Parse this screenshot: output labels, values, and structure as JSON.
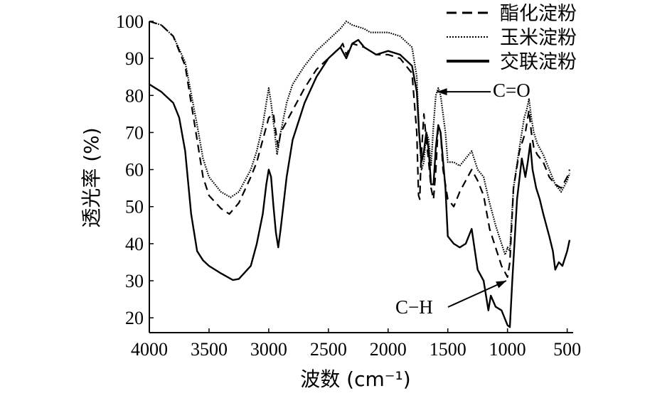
{
  "chart_data": {
    "type": "line",
    "title": "",
    "xlabel": "波数 (cm⁻¹)",
    "ylabel": "透光率 (%)",
    "xlim": [
      4000,
      450
    ],
    "xreversed": true,
    "ylim": [
      16,
      100
    ],
    "xticks": [
      4000,
      3500,
      3000,
      2500,
      2000,
      1500,
      1000,
      500
    ],
    "xtick_labels": [
      "4000",
      "3500",
      "3000",
      "2500",
      "2000",
      "1500",
      "1000",
      "500"
    ],
    "yticks": [
      20,
      30,
      40,
      50,
      60,
      70,
      80,
      90,
      100
    ],
    "ytick_labels": [
      "20",
      "30",
      "40",
      "50",
      "60",
      "70",
      "80",
      "90",
      "100"
    ],
    "grid": false,
    "legend_position": "top-right",
    "series": [
      {
        "name": "酯化淀粉",
        "style": "dashed",
        "points": [
          [
            4000,
            100
          ],
          [
            3900,
            99
          ],
          [
            3800,
            96
          ],
          [
            3700,
            88
          ],
          [
            3600,
            68
          ],
          [
            3550,
            58
          ],
          [
            3500,
            53
          ],
          [
            3400,
            49.5
          ],
          [
            3330,
            48
          ],
          [
            3250,
            51
          ],
          [
            3150,
            58
          ],
          [
            3100,
            62
          ],
          [
            3050,
            68
          ],
          [
            3000,
            74
          ],
          [
            2960,
            75
          ],
          [
            2940,
            70
          ],
          [
            2920,
            66
          ],
          [
            2900,
            70
          ],
          [
            2800,
            76
          ],
          [
            2700,
            82
          ],
          [
            2600,
            87
          ],
          [
            2500,
            90
          ],
          [
            2400,
            93
          ],
          [
            2380,
            94
          ],
          [
            2350,
            91
          ],
          [
            2300,
            94
          ],
          [
            2200,
            93
          ],
          [
            2100,
            91
          ],
          [
            2000,
            91
          ],
          [
            1900,
            90
          ],
          [
            1800,
            86
          ],
          [
            1760,
            70
          ],
          [
            1745,
            53
          ],
          [
            1735,
            52
          ],
          [
            1725,
            62
          ],
          [
            1700,
            75
          ],
          [
            1680,
            68
          ],
          [
            1660,
            62
          ],
          [
            1640,
            55
          ],
          [
            1620,
            52
          ],
          [
            1600,
            60
          ],
          [
            1580,
            72
          ],
          [
            1560,
            70
          ],
          [
            1540,
            60
          ],
          [
            1500,
            52
          ],
          [
            1450,
            50
          ],
          [
            1400,
            54
          ],
          [
            1350,
            57
          ],
          [
            1300,
            60
          ],
          [
            1250,
            57
          ],
          [
            1200,
            53
          ],
          [
            1150,
            44
          ],
          [
            1100,
            39
          ],
          [
            1050,
            34
          ],
          [
            1000,
            31
          ],
          [
            980,
            35
          ],
          [
            950,
            55
          ],
          [
            900,
            65
          ],
          [
            850,
            70
          ],
          [
            820,
            76
          ],
          [
            800,
            70
          ],
          [
            780,
            66
          ],
          [
            750,
            64
          ],
          [
            700,
            62
          ],
          [
            650,
            58
          ],
          [
            600,
            56
          ],
          [
            550,
            55
          ],
          [
            500,
            58
          ],
          [
            480,
            60
          ]
        ]
      },
      {
        "name": "玉米淀粉",
        "style": "dotted",
        "points": [
          [
            4000,
            100
          ],
          [
            3900,
            99
          ],
          [
            3800,
            96
          ],
          [
            3700,
            89
          ],
          [
            3600,
            72
          ],
          [
            3550,
            63
          ],
          [
            3500,
            58
          ],
          [
            3400,
            54
          ],
          [
            3320,
            52.5
          ],
          [
            3250,
            54
          ],
          [
            3150,
            60
          ],
          [
            3100,
            65
          ],
          [
            3050,
            72
          ],
          [
            3010,
            80
          ],
          [
            3000,
            82
          ],
          [
            2980,
            78
          ],
          [
            2950,
            70
          ],
          [
            2930,
            64
          ],
          [
            2900,
            70
          ],
          [
            2850,
            78
          ],
          [
            2800,
            83
          ],
          [
            2700,
            88
          ],
          [
            2600,
            92
          ],
          [
            2500,
            95
          ],
          [
            2400,
            98
          ],
          [
            2350,
            100
          ],
          [
            2300,
            99
          ],
          [
            2200,
            98
          ],
          [
            2150,
            97
          ],
          [
            2100,
            97
          ],
          [
            2000,
            97
          ],
          [
            1900,
            96
          ],
          [
            1800,
            93
          ],
          [
            1760,
            85
          ],
          [
            1740,
            70
          ],
          [
            1720,
            60
          ],
          [
            1700,
            62
          ],
          [
            1680,
            70
          ],
          [
            1660,
            68
          ],
          [
            1640,
            61
          ],
          [
            1620,
            72
          ],
          [
            1600,
            80
          ],
          [
            1580,
            82
          ],
          [
            1560,
            80
          ],
          [
            1520,
            70
          ],
          [
            1500,
            62
          ],
          [
            1450,
            62
          ],
          [
            1400,
            61
          ],
          [
            1350,
            63
          ],
          [
            1300,
            65
          ],
          [
            1250,
            60
          ],
          [
            1200,
            58
          ],
          [
            1150,
            51
          ],
          [
            1100,
            45
          ],
          [
            1050,
            40
          ],
          [
            1020,
            37
          ],
          [
            1000,
            39
          ],
          [
            980,
            38
          ],
          [
            950,
            55
          ],
          [
            900,
            66
          ],
          [
            860,
            74
          ],
          [
            840,
            76
          ],
          [
            820,
            79
          ],
          [
            800,
            74
          ],
          [
            780,
            70
          ],
          [
            750,
            67
          ],
          [
            700,
            64
          ],
          [
            650,
            60
          ],
          [
            600,
            56
          ],
          [
            550,
            54
          ],
          [
            500,
            57
          ],
          [
            480,
            59
          ]
        ]
      },
      {
        "name": "交联淀粉",
        "style": "solid",
        "points": [
          [
            4000,
            83
          ],
          [
            3900,
            81
          ],
          [
            3800,
            78
          ],
          [
            3750,
            74
          ],
          [
            3700,
            65
          ],
          [
            3650,
            48
          ],
          [
            3600,
            38
          ],
          [
            3550,
            35.5
          ],
          [
            3500,
            34
          ],
          [
            3400,
            32
          ],
          [
            3300,
            30.2
          ],
          [
            3250,
            30.5
          ],
          [
            3150,
            34
          ],
          [
            3100,
            40
          ],
          [
            3050,
            48
          ],
          [
            3020,
            56
          ],
          [
            3000,
            60
          ],
          [
            2980,
            58
          ],
          [
            2960,
            50
          ],
          [
            2940,
            43
          ],
          [
            2920,
            39
          ],
          [
            2900,
            44
          ],
          [
            2850,
            58
          ],
          [
            2800,
            68
          ],
          [
            2700,
            78
          ],
          [
            2600,
            85
          ],
          [
            2500,
            90
          ],
          [
            2400,
            93
          ],
          [
            2350,
            90
          ],
          [
            2300,
            94
          ],
          [
            2250,
            95
          ],
          [
            2200,
            93
          ],
          [
            2100,
            91
          ],
          [
            2000,
            92
          ],
          [
            1900,
            91
          ],
          [
            1800,
            88
          ],
          [
            1760,
            81
          ],
          [
            1740,
            70
          ],
          [
            1720,
            62
          ],
          [
            1700,
            65
          ],
          [
            1680,
            70
          ],
          [
            1660,
            65
          ],
          [
            1640,
            56
          ],
          [
            1620,
            56
          ],
          [
            1600,
            66
          ],
          [
            1580,
            72
          ],
          [
            1560,
            70
          ],
          [
            1520,
            55
          ],
          [
            1500,
            42
          ],
          [
            1450,
            40
          ],
          [
            1400,
            39
          ],
          [
            1350,
            40
          ],
          [
            1300,
            44
          ],
          [
            1250,
            33
          ],
          [
            1200,
            30
          ],
          [
            1160,
            22
          ],
          [
            1140,
            26
          ],
          [
            1100,
            23
          ],
          [
            1050,
            22
          ],
          [
            1000,
            18
          ],
          [
            980,
            17.5
          ],
          [
            960,
            30
          ],
          [
            920,
            52
          ],
          [
            880,
            63
          ],
          [
            850,
            58
          ],
          [
            830,
            62
          ],
          [
            810,
            67
          ],
          [
            790,
            60
          ],
          [
            760,
            55
          ],
          [
            730,
            52
          ],
          [
            700,
            48
          ],
          [
            650,
            42
          ],
          [
            620,
            38
          ],
          [
            600,
            33
          ],
          [
            570,
            35
          ],
          [
            540,
            34
          ],
          [
            500,
            38
          ],
          [
            480,
            41
          ]
        ]
      }
    ],
    "annotations": [
      {
        "text": "C=O",
        "arrow_to": [
          1590,
          81
        ]
      },
      {
        "text": "C−H",
        "arrow_to": [
          1010,
          30
        ]
      }
    ]
  }
}
